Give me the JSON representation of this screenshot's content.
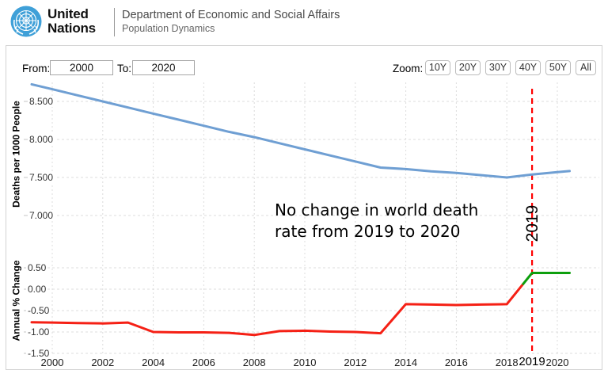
{
  "header": {
    "org_line1": "United",
    "org_line2": "Nations",
    "dept": "Department of Economic and Social Affairs",
    "subtitle": "Population Dynamics"
  },
  "controls": {
    "from_label": "From:",
    "from_value": "2000",
    "to_label": "To:",
    "to_value": "2020",
    "zoom_label": "Zoom:",
    "zoom_buttons": [
      "10Y",
      "20Y",
      "30Y",
      "40Y",
      "50Y",
      "All"
    ]
  },
  "annotation": {
    "line1": "No change in world death",
    "line2": "rate from 2019 to 2020"
  },
  "plotline": {
    "year_label": "2019"
  },
  "chart_data": [
    {
      "type": "line",
      "title": "",
      "ylabel": "Deaths per 1000 People",
      "xlabel": "",
      "x": [
        2000,
        2001,
        2002,
        2003,
        2004,
        2005,
        2006,
        2007,
        2008,
        2009,
        2010,
        2011,
        2012,
        2013,
        2014,
        2015,
        2016,
        2017,
        2018,
        2019,
        2020
      ],
      "series": [
        {
          "name": "Deaths per 1000 People",
          "color": "#6f9fd3",
          "values": [
            8.66,
            8.58,
            8.5,
            8.42,
            8.34,
            8.26,
            8.18,
            8.1,
            8.03,
            7.95,
            7.87,
            7.79,
            7.71,
            7.63,
            7.61,
            7.58,
            7.56,
            7.53,
            7.5,
            7.54,
            7.57
          ]
        }
      ],
      "yticks": {
        "labels": [
          "8.500",
          "8.000",
          "7.500",
          "7.000"
        ],
        "values": [
          8.5,
          8.0,
          7.5,
          7.0
        ]
      },
      "xticks": {
        "labels": [
          "2000",
          "2002",
          "2004",
          "2006",
          "2008",
          "2010",
          "2012",
          "2014",
          "2016",
          "2018",
          "2020"
        ],
        "values": [
          2000,
          2002,
          2004,
          2006,
          2008,
          2010,
          2012,
          2014,
          2016,
          2018,
          2020
        ]
      },
      "ylim": [
        6.9,
        8.75
      ],
      "xlim": [
        2000,
        2020
      ],
      "grid": true,
      "legend": "none",
      "plotline": {
        "value": 2019,
        "label": "2019",
        "color": "#ff0000",
        "dashed": true
      }
    },
    {
      "type": "line",
      "title": "",
      "ylabel": "Annual % Change",
      "xlabel": "",
      "x": [
        2000,
        2001,
        2002,
        2003,
        2004,
        2005,
        2006,
        2007,
        2008,
        2009,
        2010,
        2011,
        2012,
        2013,
        2014,
        2015,
        2016,
        2017,
        2018,
        2019,
        2020
      ],
      "series": [
        {
          "name": "Annual % Change",
          "color": "#f52015",
          "color_after": "#0d9f0d",
          "color_change_at": 2018.65,
          "values": [
            -0.78,
            -0.79,
            -0.8,
            -0.78,
            -1.0,
            -1.01,
            -1.01,
            -1.02,
            -1.07,
            -0.98,
            -0.97,
            -0.99,
            -1.0,
            -1.03,
            -0.35,
            -0.36,
            -0.37,
            -0.36,
            -0.35,
            0.38,
            0.38
          ]
        }
      ],
      "yticks": {
        "labels": [
          "0.50",
          "0.00",
          "-0.50",
          "-1.00",
          "-1.50"
        ],
        "values": [
          0.5,
          0.0,
          -0.5,
          -1.0,
          -1.5
        ]
      },
      "ylim": [
        -1.6,
        0.6
      ],
      "xlim": [
        2000,
        2020
      ],
      "grid": true,
      "legend": "none",
      "plotline": {
        "value": 2019,
        "label": "2019",
        "color": "#ff0000",
        "dashed": true
      }
    }
  ]
}
